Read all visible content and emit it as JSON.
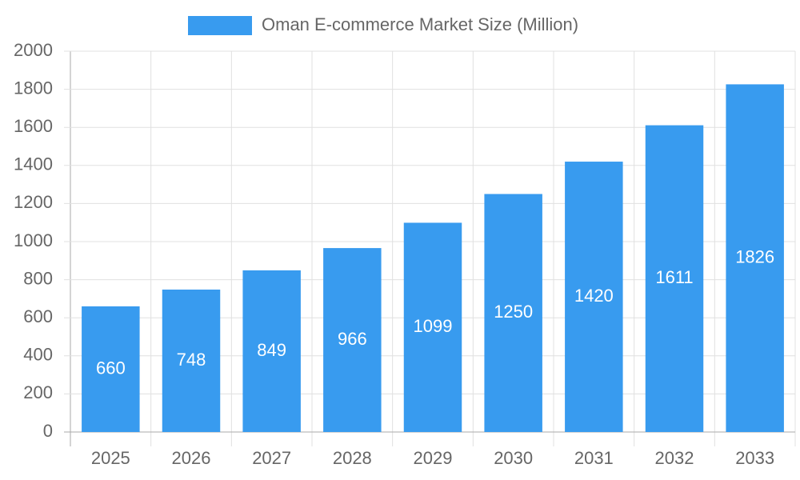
{
  "chart_data": {
    "type": "bar",
    "categories": [
      "2025",
      "2026",
      "2027",
      "2028",
      "2029",
      "2030",
      "2031",
      "2032",
      "2033"
    ],
    "series": [
      {
        "name": "Oman E-commerce Market Size (Million)",
        "color": "#389bef",
        "values": [
          660,
          748,
          849,
          966,
          1099,
          1250,
          1420,
          1611,
          1826
        ]
      }
    ],
    "ylim": [
      0,
      2000
    ],
    "yticks": [
      0,
      200,
      400,
      600,
      800,
      1000,
      1200,
      1400,
      1600,
      1800,
      2000
    ],
    "grid": true,
    "legend": "top"
  }
}
